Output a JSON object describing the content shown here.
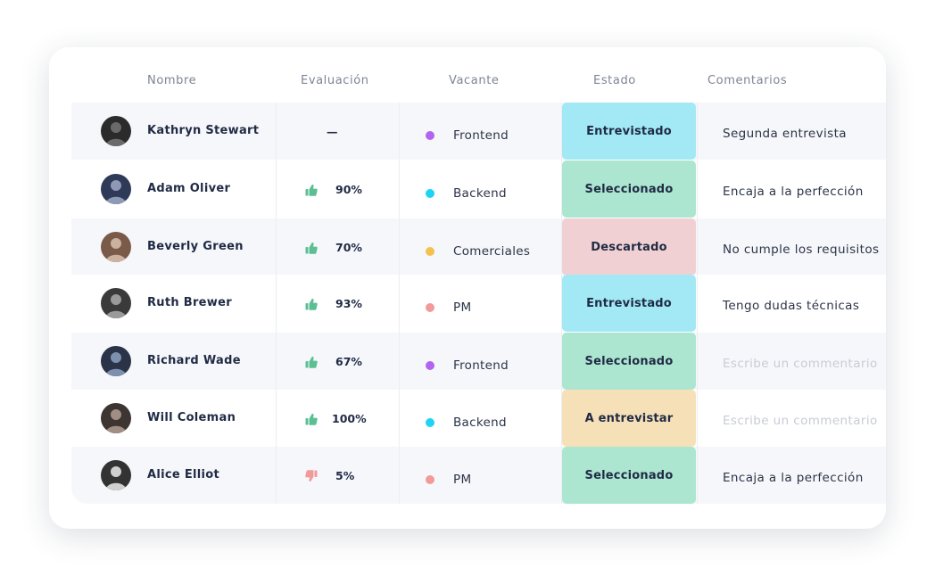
{
  "headers": {
    "name": "Nombre",
    "evaluation": "Evaluación",
    "vacancy": "Vacante",
    "status": "Estado",
    "comments": "Comentarios"
  },
  "rows": [
    {
      "name": "Kathryn Stewart",
      "thumb": "none",
      "score": "—",
      "vacancy": "Frontend",
      "vacancy_color": "#b264f0",
      "status": "Entrevistado",
      "status_color": "#a2e9f5",
      "comment": "Segunda entrevista",
      "comment_is_placeholder": false
    },
    {
      "name": "Adam Oliver",
      "thumb": "thumbs-up-icon",
      "score": "90%",
      "vacancy": "Backend",
      "vacancy_color": "#1fd3f5",
      "status": "Seleccionado",
      "status_color": "#ade6d0",
      "comment": "Encaja a la perfección",
      "comment_is_placeholder": false
    },
    {
      "name": "Beverly Green",
      "thumb": "thumbs-up-icon",
      "score": "70%",
      "vacancy": "Comerciales",
      "vacancy_color": "#f2c14e",
      "status": "Descartado",
      "status_color": "#f1d0d3",
      "comment": "No cumple los requisitos",
      "comment_is_placeholder": false
    },
    {
      "name": "Ruth Brewer",
      "thumb": "thumbs-up-icon",
      "score": "93%",
      "vacancy": "PM",
      "vacancy_color": "#f29a9a",
      "status": "Entrevistado",
      "status_color": "#a2e9f5",
      "comment": "Tengo dudas técnicas",
      "comment_is_placeholder": false
    },
    {
      "name": "Richard Wade",
      "thumb": "thumbs-up-icon",
      "score": "67%",
      "vacancy": "Frontend",
      "vacancy_color": "#b264f0",
      "status": "Seleccionado",
      "status_color": "#ade6d0",
      "comment": "Escribe un commentario",
      "comment_is_placeholder": true
    },
    {
      "name": "Will Coleman",
      "thumb": "thumbs-up-icon",
      "score": "100%",
      "vacancy": "Backend",
      "vacancy_color": "#1fd3f5",
      "status": "A entrevistar",
      "status_color": "#f6e0b8",
      "comment": "Escribe un commentario",
      "comment_is_placeholder": true
    },
    {
      "name": "Alice Elliot",
      "thumb": "thumbs-down-icon",
      "score": "5%",
      "vacancy": "PM",
      "vacancy_color": "#f29a9a",
      "status": "Seleccionado",
      "status_color": "#ade6d0",
      "comment": "Encaja a la perfección",
      "comment_is_placeholder": false
    }
  ],
  "colors": {
    "thumbs_up": "#5cbf94",
    "thumbs_down": "#f29a9a"
  }
}
